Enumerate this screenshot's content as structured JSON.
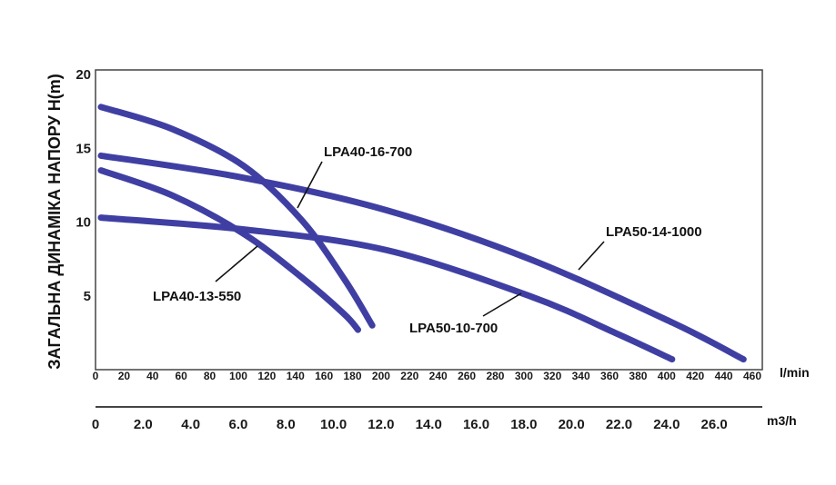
{
  "chart_data": {
    "type": "line",
    "title": "",
    "ylabel": "ЗАГАЛЬНА ДИНАМІКА НАПОРУ H(m)",
    "x_unit_primary": "l/min",
    "x_unit_secondary": "m3/h",
    "ylim": [
      0,
      20
    ],
    "xlim": [
      0,
      460
    ],
    "x_ticks": [
      "0",
      "20",
      "40",
      "60",
      "80",
      "100",
      "120",
      "140",
      "160",
      "180",
      "200",
      "220",
      "240",
      "260",
      "280",
      "300",
      "320",
      "340",
      "360",
      "380",
      "400",
      "420",
      "440",
      "460"
    ],
    "x2_ticks": [
      "0",
      "2.0",
      "4.0",
      "6.0",
      "8.0",
      "10.0",
      "12.0",
      "14.0",
      "16.0",
      "18.0",
      "20.0",
      "22.0",
      "24.0",
      "26.0"
    ],
    "y_ticks": [
      "5",
      "10",
      "15",
      "20"
    ],
    "grid": false,
    "line_color": "#3f3fa3",
    "series": [
      {
        "name": "LPA40-16-700",
        "x": [
          0,
          50,
          100,
          140,
          170,
          190
        ],
        "y": [
          17.8,
          16.3,
          13.8,
          10.2,
          6.2,
          3.0
        ]
      },
      {
        "name": "LPA50-14-1000",
        "x": [
          0,
          100,
          200,
          300,
          400,
          450
        ],
        "y": [
          14.5,
          13.0,
          10.8,
          7.5,
          3.2,
          0.7
        ]
      },
      {
        "name": "LPA40-13-550",
        "x": [
          0,
          50,
          100,
          140,
          170,
          180
        ],
        "y": [
          13.5,
          11.8,
          9.2,
          6.3,
          3.8,
          2.7
        ]
      },
      {
        "name": "LPA50-10-700",
        "x": [
          0,
          100,
          200,
          300,
          360,
          400
        ],
        "y": [
          10.3,
          9.5,
          8.1,
          5.0,
          2.5,
          0.7
        ]
      }
    ]
  }
}
